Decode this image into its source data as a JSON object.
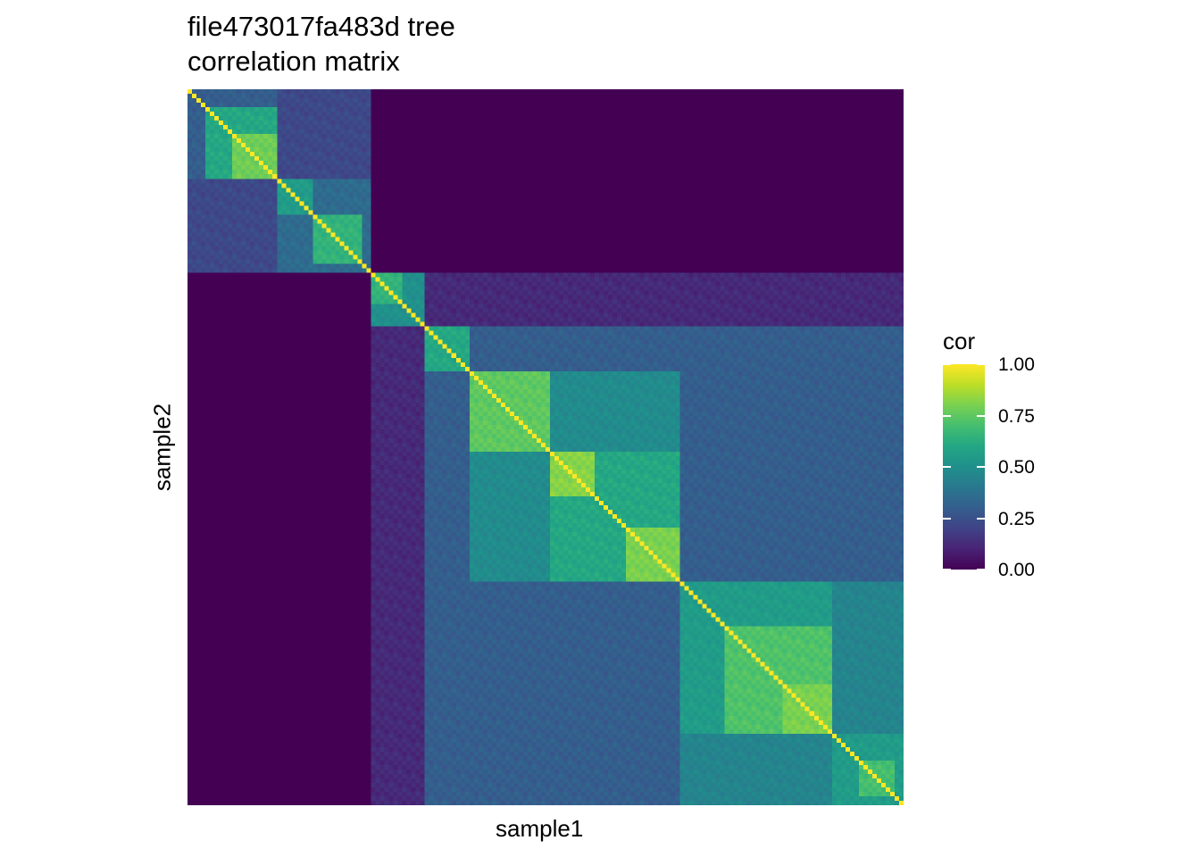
{
  "title_line1": "file473017fa483d tree",
  "title_line2": "correlation matrix",
  "chart_data": {
    "type": "heatmap",
    "title": "file473017fa483d tree\ncorrelation matrix",
    "xlabel": "sample1",
    "ylabel": "sample2",
    "n": 160,
    "colorscale": "viridis",
    "legend": {
      "title": "cor",
      "placement": "right",
      "range": [
        0,
        1
      ],
      "ticks": [
        "1.00",
        "0.75",
        "0.50",
        "0.25",
        "0.00"
      ]
    },
    "blocks": [
      {
        "start": 0,
        "end": 41,
        "value": 0.22
      },
      {
        "start": 0,
        "end": 20,
        "value": 0.3
      },
      {
        "start": 4,
        "end": 20,
        "value": 0.6
      },
      {
        "start": 10,
        "end": 20,
        "value": 0.78
      },
      {
        "start": 20,
        "end": 41,
        "value": 0.35
      },
      {
        "start": 20,
        "end": 28,
        "value": 0.55
      },
      {
        "start": 28,
        "end": 39,
        "value": 0.65
      },
      {
        "start": 41,
        "end": 160,
        "value": 0.12
      },
      {
        "start": 41,
        "end": 53,
        "value": 0.5
      },
      {
        "start": 41,
        "end": 48,
        "value": 0.65
      },
      {
        "start": 53,
        "end": 160,
        "value": 0.3
      },
      {
        "start": 53,
        "end": 63,
        "value": 0.6
      },
      {
        "start": 63,
        "end": 110,
        "value": 0.48
      },
      {
        "start": 63,
        "end": 81,
        "value": 0.75
      },
      {
        "start": 81,
        "end": 110,
        "value": 0.6
      },
      {
        "start": 81,
        "end": 91,
        "value": 0.82
      },
      {
        "start": 98,
        "end": 110,
        "value": 0.8
      },
      {
        "start": 110,
        "end": 160,
        "value": 0.45
      },
      {
        "start": 110,
        "end": 144,
        "value": 0.55
      },
      {
        "start": 120,
        "end": 144,
        "value": 0.72
      },
      {
        "start": 133,
        "end": 144,
        "value": 0.8
      },
      {
        "start": 144,
        "end": 160,
        "value": 0.55
      },
      {
        "start": 150,
        "end": 158,
        "value": 0.7
      }
    ],
    "diagonal": 1.0
  }
}
